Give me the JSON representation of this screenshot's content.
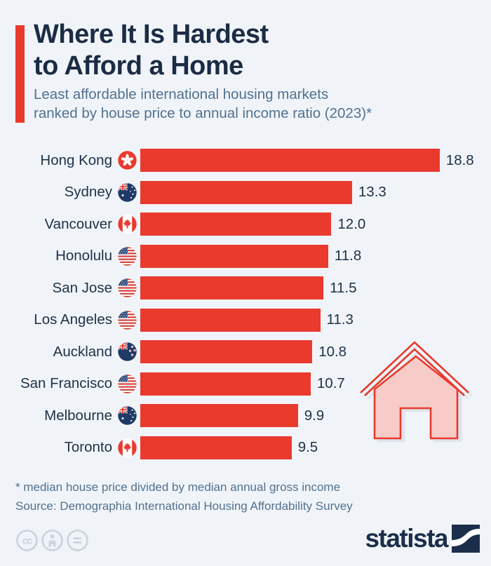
{
  "header": {
    "title_line1": "Where It Is Hardest",
    "title_line2": "to Afford a Home",
    "subtitle_line1": "Least affordable international housing markets",
    "subtitle_line2": "ranked by house price to annual income ratio (2023)*"
  },
  "chart_data": {
    "type": "bar",
    "orientation": "horizontal",
    "title": "Where It Is Hardest to Afford a Home",
    "xlabel": "house price to annual income ratio",
    "xlim": [
      0,
      20
    ],
    "grid": false,
    "legend": null,
    "bar_color": "#e93a2d",
    "categories": [
      "Hong Kong",
      "Sydney",
      "Vancouver",
      "Honolulu",
      "San Jose",
      "Los Angeles",
      "Auckland",
      "San Francisco",
      "Melbourne",
      "Toronto"
    ],
    "values": [
      18.8,
      13.3,
      12.0,
      11.8,
      11.5,
      11.3,
      10.8,
      10.7,
      9.9,
      9.5
    ],
    "value_labels": [
      "18.8",
      "13.3",
      "12.0",
      "11.8",
      "11.5",
      "11.3",
      "10.8",
      "10.7",
      "9.9",
      "9.5"
    ],
    "flags": [
      "hong-kong",
      "australia",
      "canada",
      "united-states",
      "united-states",
      "united-states",
      "new-zealand",
      "united-states",
      "australia",
      "canada"
    ]
  },
  "footer": {
    "note": "* median house price divided by median annual gross income",
    "source": "Source: Demographia International Housing Affordability Survey"
  },
  "branding": {
    "logo_text": "statista",
    "logo_mark": "statista-swoosh-icon",
    "license_icons": [
      "cc-icon",
      "attribution-icon",
      "no-derivatives-icon"
    ]
  },
  "decor": {
    "house_icon": "house-icon"
  },
  "colors": {
    "background": "#f0f4f8",
    "bar": "#e93a2d",
    "title": "#1b2c45",
    "subtitle": "#51718f",
    "house_fill": "#f7cbc7",
    "license_icons": "#c9d3dd",
    "logo": "#1b2e4a"
  }
}
